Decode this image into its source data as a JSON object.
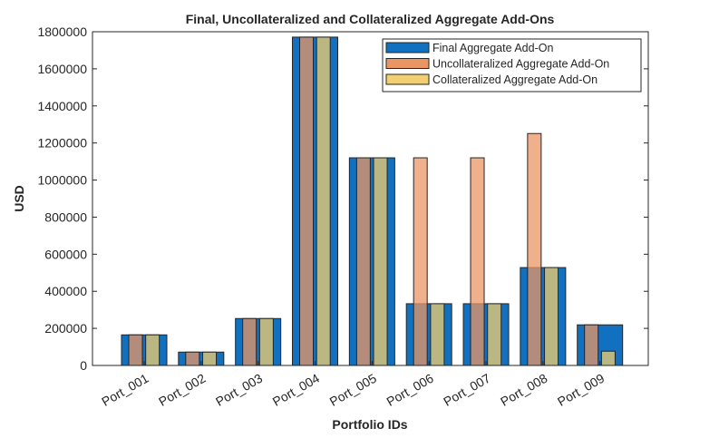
{
  "chart_data": {
    "type": "bar",
    "title": "Final, Uncollateralized and Collateralized Aggregate Add-Ons",
    "xlabel": "Portfolio IDs",
    "ylabel": "USD",
    "ylim": [
      0,
      1800000
    ],
    "yticks": [
      0,
      200000,
      400000,
      600000,
      800000,
      1000000,
      1200000,
      1400000,
      1600000,
      1800000
    ],
    "categories": [
      "Port_001",
      "Port_002",
      "Port_003",
      "Port_004",
      "Port_005",
      "Port_006",
      "Port_007",
      "Port_008",
      "Port_009"
    ],
    "series": [
      {
        "name": "Final Aggregate Add-On",
        "color": "#1170bf",
        "values": [
          165000,
          72000,
          253000,
          1771000,
          1120000,
          333000,
          333000,
          528000,
          219000
        ]
      },
      {
        "name": "Uncollateralized Aggregate Add-On",
        "color": "#ea9664",
        "values": [
          165000,
          72000,
          253000,
          1771000,
          1120000,
          1120000,
          1120000,
          1251000,
          219000
        ]
      },
      {
        "name": "Collateralized Aggregate Add-On",
        "color": "#f4cf6f",
        "values": [
          165000,
          72000,
          253000,
          1771000,
          1120000,
          333000,
          333000,
          528000,
          77000
        ]
      }
    ],
    "legend": "top-right",
    "grid": false
  }
}
